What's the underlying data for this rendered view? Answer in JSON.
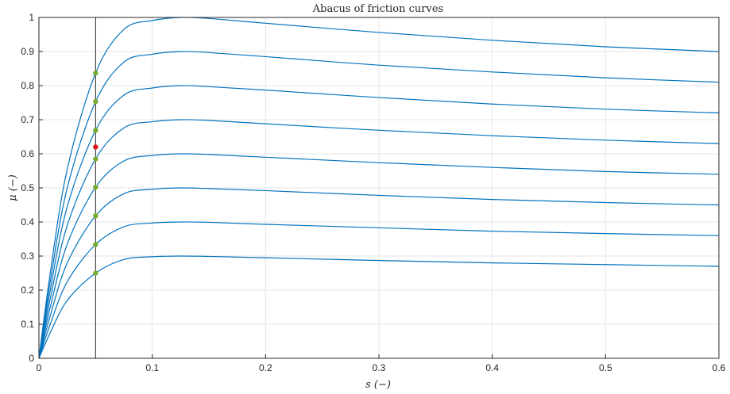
{
  "chart_data": {
    "type": "line",
    "title": "Abacus of friction curves",
    "xlabel": "s (−)",
    "ylabel": "μ (−)",
    "xlim": [
      0,
      0.6
    ],
    "ylim": [
      0,
      1
    ],
    "xticks": [
      0,
      0.1,
      0.2,
      0.3,
      0.4,
      0.5,
      0.6
    ],
    "yticks": [
      0,
      0.1,
      0.2,
      0.3,
      0.4,
      0.5,
      0.6,
      0.7,
      0.8,
      0.9,
      1
    ],
    "grid": true,
    "curve_color": "#0072BD",
    "series": [
      {
        "x": [
          0,
          0.01,
          0.025,
          0.05,
          0.075,
          0.1,
          0.125,
          0.15,
          0.2,
          0.3,
          0.4,
          0.5,
          0.6
        ],
        "y": [
          0,
          0.075,
          0.17,
          0.25,
          0.29,
          0.298,
          0.3,
          0.299,
          0.295,
          0.287,
          0.28,
          0.275,
          0.27
        ]
      },
      {
        "x": [
          0,
          0.01,
          0.025,
          0.05,
          0.075,
          0.1,
          0.125,
          0.15,
          0.2,
          0.3,
          0.4,
          0.5,
          0.6
        ],
        "y": [
          0,
          0.1,
          0.225,
          0.334,
          0.386,
          0.397,
          0.4,
          0.399,
          0.393,
          0.383,
          0.373,
          0.366,
          0.36
        ]
      },
      {
        "x": [
          0,
          0.01,
          0.025,
          0.05,
          0.075,
          0.1,
          0.125,
          0.15,
          0.2,
          0.3,
          0.4,
          0.5,
          0.6
        ],
        "y": [
          0,
          0.125,
          0.28,
          0.418,
          0.483,
          0.496,
          0.5,
          0.498,
          0.492,
          0.478,
          0.466,
          0.457,
          0.45
        ]
      },
      {
        "x": [
          0,
          0.01,
          0.025,
          0.05,
          0.075,
          0.1,
          0.125,
          0.15,
          0.2,
          0.3,
          0.4,
          0.5,
          0.6
        ],
        "y": [
          0,
          0.15,
          0.335,
          0.502,
          0.579,
          0.595,
          0.6,
          0.598,
          0.59,
          0.574,
          0.56,
          0.548,
          0.54
        ]
      },
      {
        "x": [
          0,
          0.01,
          0.025,
          0.05,
          0.075,
          0.1,
          0.125,
          0.15,
          0.2,
          0.3,
          0.4,
          0.5,
          0.6
        ],
        "y": [
          0,
          0.175,
          0.39,
          0.585,
          0.676,
          0.694,
          0.7,
          0.698,
          0.688,
          0.669,
          0.653,
          0.64,
          0.63
        ]
      },
      {
        "x": [
          0,
          0.01,
          0.025,
          0.05,
          0.075,
          0.1,
          0.125,
          0.15,
          0.2,
          0.3,
          0.4,
          0.5,
          0.6
        ],
        "y": [
          0,
          0.2,
          0.445,
          0.669,
          0.772,
          0.793,
          0.8,
          0.797,
          0.787,
          0.765,
          0.746,
          0.731,
          0.72
        ]
      },
      {
        "x": [
          0,
          0.01,
          0.025,
          0.05,
          0.075,
          0.1,
          0.125,
          0.15,
          0.2,
          0.3,
          0.4,
          0.5,
          0.6
        ],
        "y": [
          0,
          0.225,
          0.5,
          0.753,
          0.869,
          0.892,
          0.9,
          0.897,
          0.885,
          0.86,
          0.84,
          0.823,
          0.81
        ]
      },
      {
        "x": [
          0,
          0.01,
          0.025,
          0.05,
          0.075,
          0.1,
          0.125,
          0.15,
          0.2,
          0.3,
          0.4,
          0.5,
          0.6
        ],
        "y": [
          0,
          0.25,
          0.555,
          0.837,
          0.965,
          0.991,
          1.0,
          0.997,
          0.983,
          0.956,
          0.933,
          0.914,
          0.9
        ]
      }
    ],
    "vline": {
      "x": 0.05,
      "color": "#262626"
    },
    "markers": [
      {
        "x": 0.05,
        "y": 0.25,
        "color": "#77AC30"
      },
      {
        "x": 0.05,
        "y": 0.334,
        "color": "#77AC30"
      },
      {
        "x": 0.05,
        "y": 0.418,
        "color": "#77AC30"
      },
      {
        "x": 0.05,
        "y": 0.502,
        "color": "#77AC30"
      },
      {
        "x": 0.05,
        "y": 0.585,
        "color": "#77AC30"
      },
      {
        "x": 0.05,
        "y": 0.62,
        "color": "#DD1515"
      },
      {
        "x": 0.05,
        "y": 0.669,
        "color": "#77AC30"
      },
      {
        "x": 0.05,
        "y": 0.753,
        "color": "#77AC30"
      },
      {
        "x": 0.05,
        "y": 0.837,
        "color": "#77AC30"
      }
    ]
  }
}
